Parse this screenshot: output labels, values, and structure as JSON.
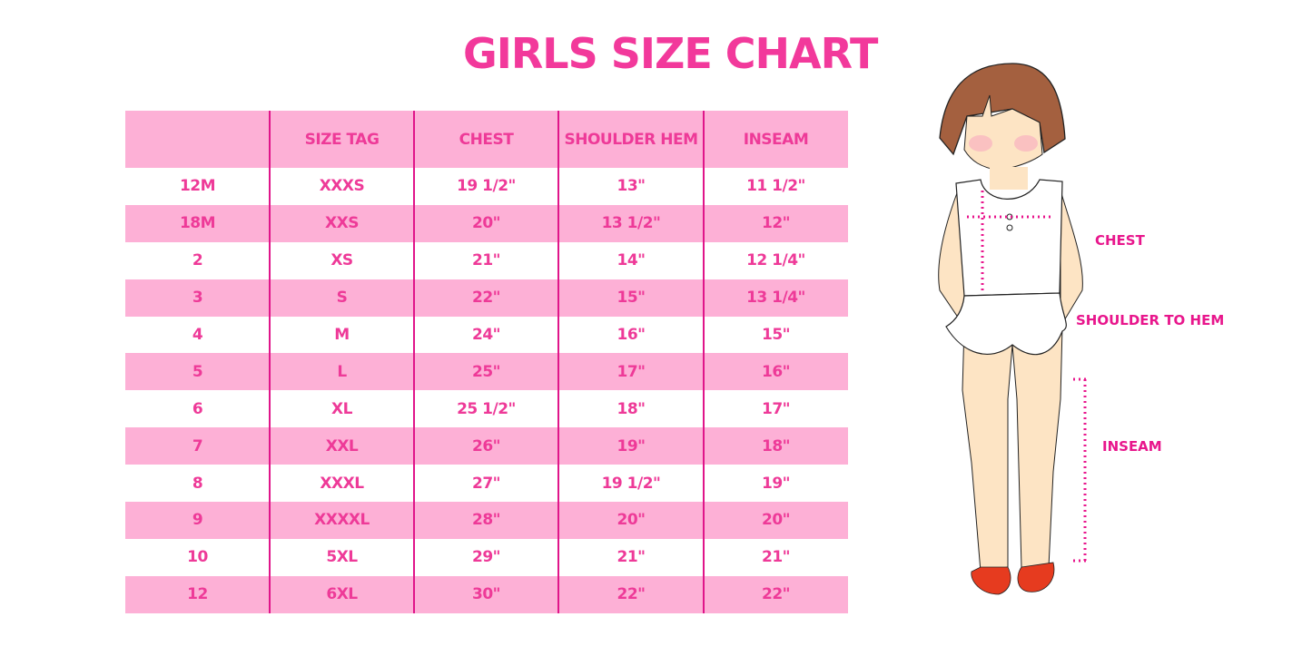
{
  "title": "GIRLS SIZE CHART",
  "table": {
    "headers": [
      "",
      "SIZE TAG",
      "CHEST",
      "SHOULDER HEM",
      "INSEAM"
    ],
    "rows": [
      [
        "12M",
        "XXXS",
        "19 1/2\"",
        "13\"",
        "11 1/2\""
      ],
      [
        "18M",
        "XXS",
        "20\"",
        "13 1/2\"",
        "12\""
      ],
      [
        "2",
        "XS",
        "21\"",
        "14\"",
        "12 1/4\""
      ],
      [
        "3",
        "S",
        "22\"",
        "15\"",
        "13 1/4\""
      ],
      [
        "4",
        "M",
        "24\"",
        "16\"",
        "15\""
      ],
      [
        "5",
        "L",
        "25\"",
        "17\"",
        "16\""
      ],
      [
        "6",
        "XL",
        "25 1/2\"",
        "18\"",
        "17\""
      ],
      [
        "7",
        "XXL",
        "26\"",
        "19\"",
        "18\""
      ],
      [
        "8",
        "XXXL",
        "27\"",
        "19 1/2\"",
        "19\""
      ],
      [
        "9",
        "XXXXL",
        "28\"",
        "20\"",
        "20\""
      ],
      [
        "10",
        "5XL",
        "29\"",
        "21\"",
        "21\""
      ],
      [
        "12",
        "6XL",
        "30\"",
        "22\"",
        "22\""
      ]
    ]
  },
  "figure": {
    "labels": {
      "chest": "CHEST",
      "shoulder_to_hem": "SHOULDER TO HEM",
      "inseam": "INSEAM"
    }
  },
  "colors": {
    "accent": "#ee3a98",
    "row_pink": "#fdb0d6",
    "divider": "#e0158a"
  }
}
